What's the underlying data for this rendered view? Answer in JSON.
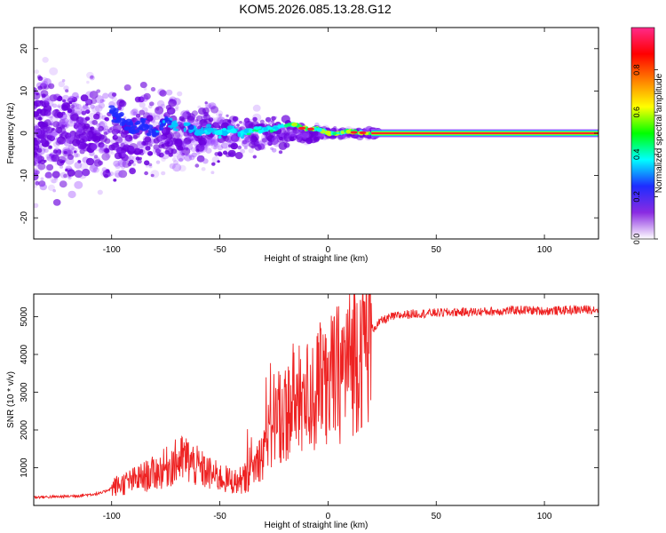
{
  "title": "KOM5.2026.085.13.28.G12",
  "colors": {
    "snr_line": "#ee2222",
    "carrier_line": "#ff1133",
    "scatter_purple": "#6a00dd",
    "scatter_violet": "#9a44ff"
  },
  "chart_data": [
    {
      "type": "heatmap",
      "name": "spectrogram",
      "xlabel": "Height of straight line (km)",
      "ylabel": "Frequency (Hz)",
      "xlim": [
        -136,
        125
      ],
      "ylim": [
        -25,
        25
      ],
      "xticks": [
        -100,
        -50,
        0,
        50,
        100
      ],
      "xtick_labels": [
        "-100",
        "-50",
        "0",
        "50",
        "100"
      ],
      "yticks": [
        -20,
        -10,
        0,
        10,
        20
      ],
      "ytick_labels": [
        "-20",
        "-10",
        "0",
        "10",
        "20"
      ],
      "carrier_frequency_hz": 0,
      "carrier_start_km": 20,
      "colorbar": {
        "label": "Normalized spectral amplitude",
        "range": [
          0,
          1
        ],
        "ticks": [
          0.0,
          0.2,
          0.4,
          0.6,
          0.8
        ],
        "tick_labels": [
          "0.0",
          "0.2",
          "0.4",
          "0.6",
          "0.8"
        ],
        "colormap": [
          "#ffffff",
          "#8a2be2",
          "#1e2cff",
          "#00ffff",
          "#00ff00",
          "#ffff00",
          "#ff8000",
          "#ff0000",
          "#ff2a8a"
        ]
      },
      "track_points_km_hz": [
        [
          -100,
          5
        ],
        [
          -95,
          3
        ],
        [
          -90,
          1
        ],
        [
          -85,
          2
        ],
        [
          -80,
          0
        ],
        [
          -75,
          3
        ],
        [
          -70,
          1
        ],
        [
          -65,
          2
        ],
        [
          -60,
          0
        ],
        [
          -55,
          1
        ],
        [
          -50,
          0
        ],
        [
          -45,
          1
        ],
        [
          -40,
          0
        ],
        [
          -35,
          0.5
        ],
        [
          -30,
          1
        ],
        [
          -25,
          1
        ],
        [
          -20,
          2
        ],
        [
          -15,
          2
        ],
        [
          -10,
          1
        ],
        [
          -5,
          1
        ],
        [
          0,
          0
        ],
        [
          5,
          0
        ],
        [
          10,
          0.5
        ],
        [
          15,
          0
        ],
        [
          20,
          0
        ]
      ]
    },
    {
      "type": "line",
      "name": "snr",
      "xlabel": "Height of straight line (km)",
      "ylabel": "SNR (10 * v/v)",
      "xlim": [
        -136,
        125
      ],
      "ylim": [
        0,
        5600
      ],
      "xticks": [
        -100,
        -50,
        0,
        50,
        100
      ],
      "xtick_labels": [
        "-100",
        "-50",
        "0",
        "50",
        "100"
      ],
      "yticks": [
        1000,
        2000,
        3000,
        4000,
        5000
      ],
      "ytick_labels": [
        "1000",
        "2000",
        "3000",
        "4000",
        "5000"
      ],
      "series": [
        {
          "name": "SNR",
          "x": [
            -136,
            -125,
            -115,
            -105,
            -98,
            -92,
            -85,
            -78,
            -72,
            -66,
            -60,
            -54,
            -48,
            -42,
            -36,
            -30,
            -25,
            -20,
            -15,
            -10,
            -5,
            0,
            5,
            10,
            15,
            20,
            25,
            30,
            35,
            40,
            50,
            60,
            70,
            80,
            90,
            100,
            110,
            125
          ],
          "values": [
            220,
            230,
            260,
            320,
            520,
            620,
            760,
            900,
            1100,
            1250,
            1000,
            820,
            700,
            620,
            800,
            1500,
            2200,
            2500,
            2700,
            2800,
            3000,
            3200,
            3500,
            3900,
            4300,
            4650,
            4900,
            5000,
            5050,
            5080,
            5100,
            5120,
            5130,
            5150,
            5180,
            5150,
            5170,
            5200
          ]
        }
      ]
    }
  ]
}
